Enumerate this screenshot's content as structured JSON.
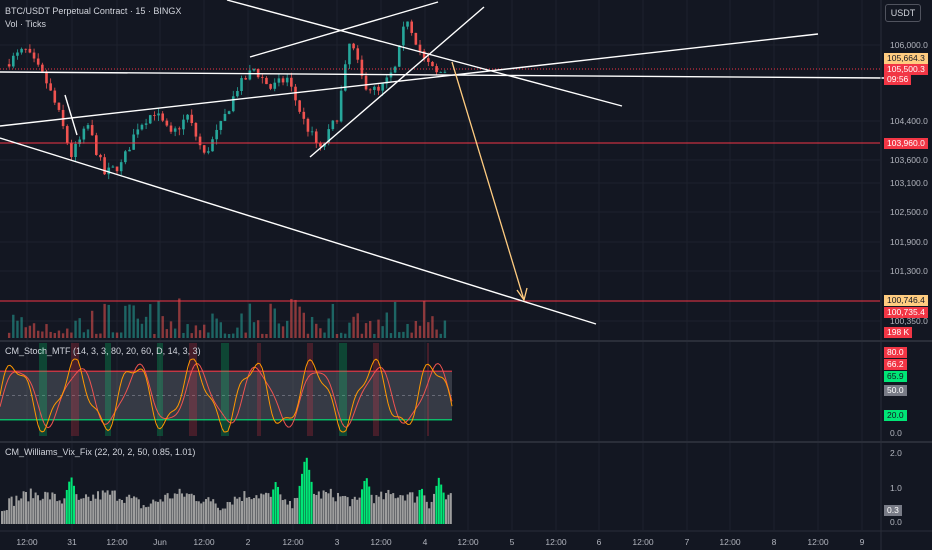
{
  "header": {
    "title": "BTC/USDT Perpetual Contract · 15 · BINGX",
    "volume_label": "Vol · Ticks",
    "currency": "USDT"
  },
  "indicators": {
    "stoch_label": "CM_Stoch_MTF (14, 3, 3, 80, 20, 60, D, 14, 3, 3)",
    "vix_label": "CM_Williams_Vix_Fix (22, 20, 2, 50, 0.85, 1.01)"
  },
  "price_axis_labels": [
    "106,000.0",
    "104,400.0",
    "103,600.0",
    "103,100.0",
    "102,500.0",
    "101,900.0",
    "101,300.0",
    "100,350.0"
  ],
  "price_tags": {
    "t1": "105,664.3",
    "t2": "105,500.3",
    "t3": "09:56",
    "t4": "103,960.0",
    "t5": "100,746.4",
    "t6": "100,735.4",
    "t7": "198 K"
  },
  "stoch_axis": {
    "tags": [
      "80.0",
      "66.2",
      "65.9",
      "50.0",
      "20.0"
    ],
    "labels": [
      "0.0"
    ]
  },
  "vix_axis": {
    "labels": [
      "2.0",
      "1.0",
      "0.0"
    ],
    "tags": [
      "0.3"
    ]
  },
  "time_axis": [
    "12:00",
    "31",
    "12:00",
    "Jun",
    "12:00",
    "2",
    "12:00",
    "3",
    "12:00",
    "4",
    "12:00",
    "5",
    "12:00",
    "6",
    "12:00",
    "7",
    "12:00",
    "8",
    "12:00",
    "9"
  ],
  "colors": {
    "background": "#131722",
    "bull": "#26a69a",
    "bear": "#ef5350",
    "trendline": "#ffffff",
    "projection": "#ffcc80",
    "level": "#f23645",
    "stoch_k": "#ff9800",
    "stoch_d": "#ef5350",
    "vix_high": "#00e676",
    "vix_normal": "#9e9e9e"
  },
  "chart_data": [
    {
      "type": "candlestick",
      "title": "BTC/USDT Perpetual Contract · 15 · BINGX",
      "ylim": [
        100200,
        107000
      ],
      "x_ticks": [
        "12:00",
        "31",
        "12:00",
        "Jun",
        "12:00",
        "2",
        "12:00",
        "3",
        "12:00",
        "4",
        "12:00",
        "5",
        "12:00",
        "6",
        "12:00",
        "7",
        "12:00",
        "8",
        "12:00",
        "9"
      ],
      "y_ticks": [
        106000,
        104400,
        103600,
        103100,
        102500,
        101900,
        101300,
        100350
      ],
      "current_price": 105500.3,
      "levels": [
        103960.0,
        100746.4
      ],
      "close_path": [
        {
          "t": 0.0,
          "price": 105600
        },
        {
          "t": 1.2,
          "price": 105900
        },
        {
          "t": 2.4,
          "price": 105300
        },
        {
          "t": 3.2,
          "price": 104600
        },
        {
          "t": 4.0,
          "price": 103700
        },
        {
          "t": 5.0,
          "price": 104300
        },
        {
          "t": 6.0,
          "price": 103300
        },
        {
          "t": 7.0,
          "price": 103500
        },
        {
          "t": 8.0,
          "price": 104300
        },
        {
          "t": 9.0,
          "price": 104600
        },
        {
          "t": 10.0,
          "price": 104100
        },
        {
          "t": 11.0,
          "price": 104500
        },
        {
          "t": 12.0,
          "price": 103700
        },
        {
          "t": 13.0,
          "price": 104300
        },
        {
          "t": 14.0,
          "price": 105100
        },
        {
          "t": 15.0,
          "price": 105500
        },
        {
          "t": 16.0,
          "price": 105100
        },
        {
          "t": 17.0,
          "price": 105300
        },
        {
          "t": 18.0,
          "price": 104400
        },
        {
          "t": 19.0,
          "price": 103800
        },
        {
          "t": 20.0,
          "price": 104500
        },
        {
          "t": 20.8,
          "price": 106100
        },
        {
          "t": 21.6,
          "price": 105200
        },
        {
          "t": 22.5,
          "price": 105000
        },
        {
          "t": 23.5,
          "price": 105500
        },
        {
          "t": 24.2,
          "price": 106600
        },
        {
          "t": 25.2,
          "price": 105700
        },
        {
          "t": 26.0,
          "price": 105400
        },
        {
          "t": 26.7,
          "price": 105500
        }
      ]
    },
    {
      "type": "line",
      "title": "CM_Stoch_MTF (14, 3, 3, 80, 20, 60, D, 14, 3, 3)",
      "ylim": [
        0,
        100
      ],
      "bands": [
        80,
        50,
        20
      ],
      "series": [
        {
          "name": "K",
          "last": 66.2
        },
        {
          "name": "D",
          "last": 65.9
        }
      ]
    },
    {
      "type": "bar",
      "title": "CM_Williams_Vix_Fix (22, 20, 2, 50, 0.85, 1.01)",
      "ylim": [
        0,
        2.0
      ],
      "last": 0.3
    }
  ]
}
